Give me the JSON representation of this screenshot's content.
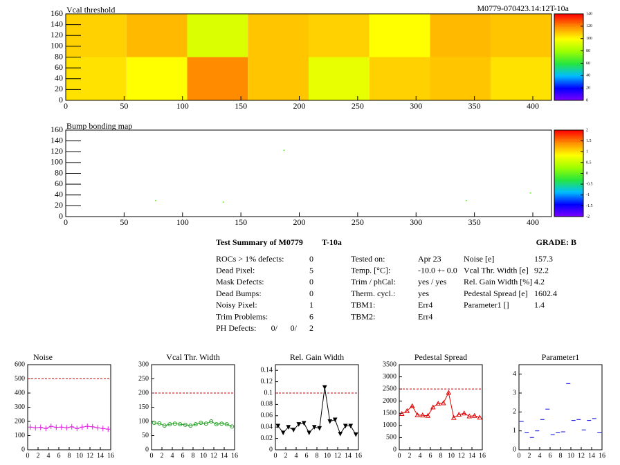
{
  "header": "M0779-070423.14:12T-10a",
  "chart_data": [
    {
      "type": "heatmap",
      "title": "Vcal threshold",
      "xlim": [
        0,
        416
      ],
      "xticks": [
        0,
        50,
        100,
        150,
        200,
        250,
        300,
        350,
        400
      ],
      "ylim": [
        0,
        160
      ],
      "yticks": [
        0,
        20,
        40,
        60,
        80,
        100,
        120,
        140,
        160
      ],
      "xbins": [
        0,
        52,
        104,
        156,
        208,
        260,
        312,
        364,
        416
      ],
      "ybins": [
        0,
        80,
        160
      ],
      "values": [
        [
          105,
          100,
          120,
          110,
          95,
          108,
          110,
          105
        ],
        [
          108,
          112,
          92,
          110,
          108,
          100,
          112,
          110
        ]
      ],
      "zlim": [
        0,
        140
      ],
      "zticks": [
        0,
        20,
        40,
        60,
        80,
        100,
        120,
        140
      ]
    },
    {
      "type": "scatter",
      "title": "Bump bonding map",
      "xlim": [
        0,
        416
      ],
      "xticks": [
        0,
        50,
        100,
        150,
        200,
        250,
        300,
        350,
        400
      ],
      "ylim": [
        0,
        160
      ],
      "yticks": [
        0,
        20,
        40,
        60,
        80,
        100,
        120,
        140,
        160
      ],
      "x": [
        187,
        77,
        135,
        343,
        398
      ],
      "y": [
        123,
        30,
        27,
        30,
        44
      ],
      "z": [
        0,
        0,
        0,
        0,
        0
      ],
      "zlim": [
        -2,
        2
      ],
      "zticks": [
        -2,
        -1.5,
        -1,
        -0.5,
        0,
        0.5,
        1,
        1.5,
        2
      ]
    },
    {
      "type": "line",
      "title": "Noise",
      "marker": "plus",
      "color": "#e020e0",
      "limit": 500,
      "xlim": [
        0,
        16
      ],
      "xticks": [
        0,
        2,
        4,
        6,
        8,
        10,
        12,
        14,
        16
      ],
      "ylim": [
        0,
        600
      ],
      "yticks": [
        0,
        100,
        200,
        300,
        400,
        500,
        600
      ],
      "x": [
        0.5,
        1.5,
        2.5,
        3.5,
        4.5,
        5.5,
        6.5,
        7.5,
        8.5,
        9.5,
        10.5,
        11.5,
        12.5,
        13.5,
        14.5,
        15.5
      ],
      "values": [
        160,
        155,
        158,
        150,
        165,
        158,
        160,
        155,
        162,
        150,
        160,
        165,
        162,
        155,
        150,
        145
      ]
    },
    {
      "type": "line",
      "title": "Vcal Thr. Width",
      "marker": "circle",
      "color": "#20a020",
      "limit": 200,
      "xlim": [
        0,
        16
      ],
      "xticks": [
        0,
        2,
        4,
        6,
        8,
        10,
        12,
        14,
        16
      ],
      "ylim": [
        0,
        300
      ],
      "yticks": [
        0,
        50,
        100,
        150,
        200,
        250,
        300
      ],
      "x": [
        0.5,
        1.5,
        2.5,
        3.5,
        4.5,
        5.5,
        6.5,
        7.5,
        8.5,
        9.5,
        10.5,
        11.5,
        12.5,
        13.5,
        14.5,
        15.5
      ],
      "values": [
        95,
        93,
        85,
        90,
        92,
        90,
        88,
        85,
        90,
        95,
        92,
        100,
        90,
        92,
        90,
        82
      ]
    },
    {
      "type": "line",
      "title": "Rel. Gain Width",
      "marker": "triangle-down",
      "color": "#000000",
      "limit": 0.1,
      "xlim": [
        0,
        16
      ],
      "xticks": [
        0,
        2,
        4,
        6,
        8,
        10,
        12,
        14,
        16
      ],
      "ylim": [
        0,
        0.15
      ],
      "yticks": [
        0,
        0.02,
        0.04,
        0.06,
        0.08,
        0.1,
        0.12,
        0.14
      ],
      "x": [
        0.5,
        1.5,
        2.5,
        3.5,
        4.5,
        5.5,
        6.5,
        7.5,
        8.5,
        9.5,
        10.5,
        11.5,
        12.5,
        13.5,
        14.5,
        15.5
      ],
      "values": [
        0.042,
        0.03,
        0.04,
        0.035,
        0.045,
        0.047,
        0.03,
        0.04,
        0.038,
        0.11,
        0.05,
        0.053,
        0.028,
        0.042,
        0.042,
        0.027
      ]
    },
    {
      "type": "line",
      "title": "Pedestal Spread",
      "marker": "triangle",
      "color": "#e00000",
      "limit": 2500,
      "xlim": [
        0,
        16
      ],
      "xticks": [
        0,
        2,
        4,
        6,
        8,
        10,
        12,
        14,
        16
      ],
      "ylim": [
        0,
        3500
      ],
      "yticks": [
        0,
        500,
        1000,
        1500,
        2000,
        2500,
        3000,
        3500
      ],
      "x": [
        0.5,
        1.5,
        2.5,
        3.5,
        4.5,
        5.5,
        6.5,
        7.5,
        8.5,
        9.5,
        10.5,
        11.5,
        12.5,
        13.5,
        14.5,
        15.5
      ],
      "values": [
        1480,
        1600,
        1800,
        1430,
        1420,
        1400,
        1750,
        1900,
        1920,
        2350,
        1320,
        1450,
        1500,
        1380,
        1400,
        1330
      ]
    },
    {
      "type": "scatter",
      "title": "Parameter1",
      "marker": "dash",
      "color": "#0000e0",
      "xlim": [
        0,
        16
      ],
      "xticks": [
        0,
        2,
        4,
        6,
        8,
        10,
        12,
        14,
        16
      ],
      "ylim": [
        0,
        4.5
      ],
      "yticks": [
        0,
        1,
        2,
        3,
        4
      ],
      "x": [
        0.5,
        1.5,
        2.5,
        3.5,
        4.5,
        5.5,
        6.5,
        7.5,
        8.5,
        9.5,
        10.5,
        11.5,
        12.5,
        13.5,
        14.5,
        15.5
      ],
      "values": [
        1.5,
        0.9,
        0.65,
        1.0,
        1.6,
        2.15,
        0.8,
        0.9,
        0.95,
        3.5,
        1.55,
        1.6,
        1.05,
        1.55,
        1.65,
        0.9
      ]
    }
  ],
  "summary": {
    "title": "Test Summary of M0779",
    "tag": "T-10a",
    "grade": "GRADE:  B",
    "defects": [
      [
        "ROCs > 1% defects:",
        0
      ],
      [
        "Dead Pixel:",
        5
      ],
      [
        "Mask Defects:",
        0
      ],
      [
        "Dead Bumps:",
        0
      ],
      [
        "Noisy Pixel:",
        1
      ],
      [
        "Trim Problems:",
        6
      ]
    ],
    "ph_defects": {
      "label": "PH Defects:",
      "values": [
        "0/",
        "0/",
        "2"
      ],
      "colors": [
        "#000000",
        "#e00000",
        "#0000e0"
      ]
    },
    "tests": [
      [
        "Tested on:",
        "Apr 23"
      ],
      [
        "Temp. [°C]:",
        "-10.0 +- 0.0"
      ],
      [
        "Trim / phCal:",
        "yes / yes"
      ],
      [
        "Therm. cycl.:",
        "yes"
      ],
      [
        "TBM1:",
        "Err4"
      ],
      [
        "TBM2:",
        "Err4"
      ]
    ],
    "results": [
      [
        "Noise [e]",
        157.3
      ],
      [
        "Vcal Thr. Width [e]",
        92.2
      ],
      [
        "Rel. Gain Width [%]",
        4.2
      ],
      [
        "Pedestal Spread [e]",
        1602.4
      ],
      [
        "Parameter1 []",
        1.4
      ]
    ]
  }
}
